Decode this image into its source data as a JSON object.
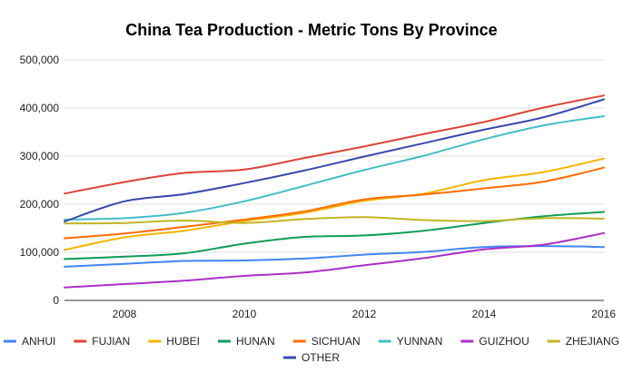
{
  "chart_data": {
    "type": "line",
    "title": "China Tea Production - Metric Tons By Province",
    "xlabel": "",
    "ylabel": "",
    "x": [
      2007,
      2008,
      2009,
      2010,
      2011,
      2012,
      2013,
      2014,
      2015,
      2016
    ],
    "xlim": [
      2007,
      2016
    ],
    "ylim": [
      0,
      500000
    ],
    "x_ticks": [
      2008,
      2010,
      2012,
      2014,
      2016
    ],
    "x_tick_labels": [
      "2008",
      "2010",
      "2012",
      "2014",
      "2016"
    ],
    "y_ticks": [
      0,
      100000,
      200000,
      300000,
      400000,
      500000
    ],
    "y_tick_labels": [
      "0",
      "100,000",
      "200,000",
      "300,000",
      "400,000",
      "500,000"
    ],
    "grid": true,
    "legend_position": "bottom",
    "series": [
      {
        "name": "ANHUI",
        "color": "#4285F4",
        "values": [
          70000,
          76000,
          82000,
          83000,
          87000,
          95000,
          101000,
          111000,
          113000,
          111000
        ]
      },
      {
        "name": "FUJIAN",
        "color": "#DB4437",
        "values": [
          222000,
          246000,
          265000,
          272000,
          296000,
          320000,
          346000,
          371000,
          401000,
          426000
        ]
      },
      {
        "name": "HUBEI",
        "color": "#F4B400",
        "values": [
          105000,
          131000,
          145000,
          165000,
          182000,
          207000,
          222000,
          250000,
          267000,
          295000
        ]
      },
      {
        "name": "HUNAN",
        "color": "#0F9D58",
        "values": [
          86000,
          91000,
          98000,
          118000,
          132000,
          135000,
          145000,
          161000,
          175000,
          184000
        ]
      },
      {
        "name": "SICHUAN",
        "color": "#FF6D00",
        "values": [
          129000,
          139000,
          153000,
          168000,
          185000,
          210000,
          220000,
          233000,
          247000,
          276000
        ]
      },
      {
        "name": "YUNNAN",
        "color": "#46BDC6",
        "values": [
          168000,
          171000,
          182000,
          206000,
          238000,
          271000,
          301000,
          335000,
          364000,
          383000
        ]
      },
      {
        "name": "GUIZHOU",
        "color": "#AB30C4",
        "values": [
          27000,
          34000,
          41000,
          51000,
          58000,
          73000,
          88000,
          106000,
          116000,
          140000
        ]
      },
      {
        "name": "ZHEJIANG",
        "color": "#C2B627",
        "values": [
          160000,
          161000,
          166000,
          161000,
          169000,
          173000,
          167000,
          165000,
          171000,
          170000
        ]
      },
      {
        "name": "OTHER",
        "color": "#3949AB",
        "values": [
          164000,
          206000,
          221000,
          244000,
          270000,
          299000,
          327000,
          355000,
          381000,
          418000
        ]
      }
    ]
  }
}
